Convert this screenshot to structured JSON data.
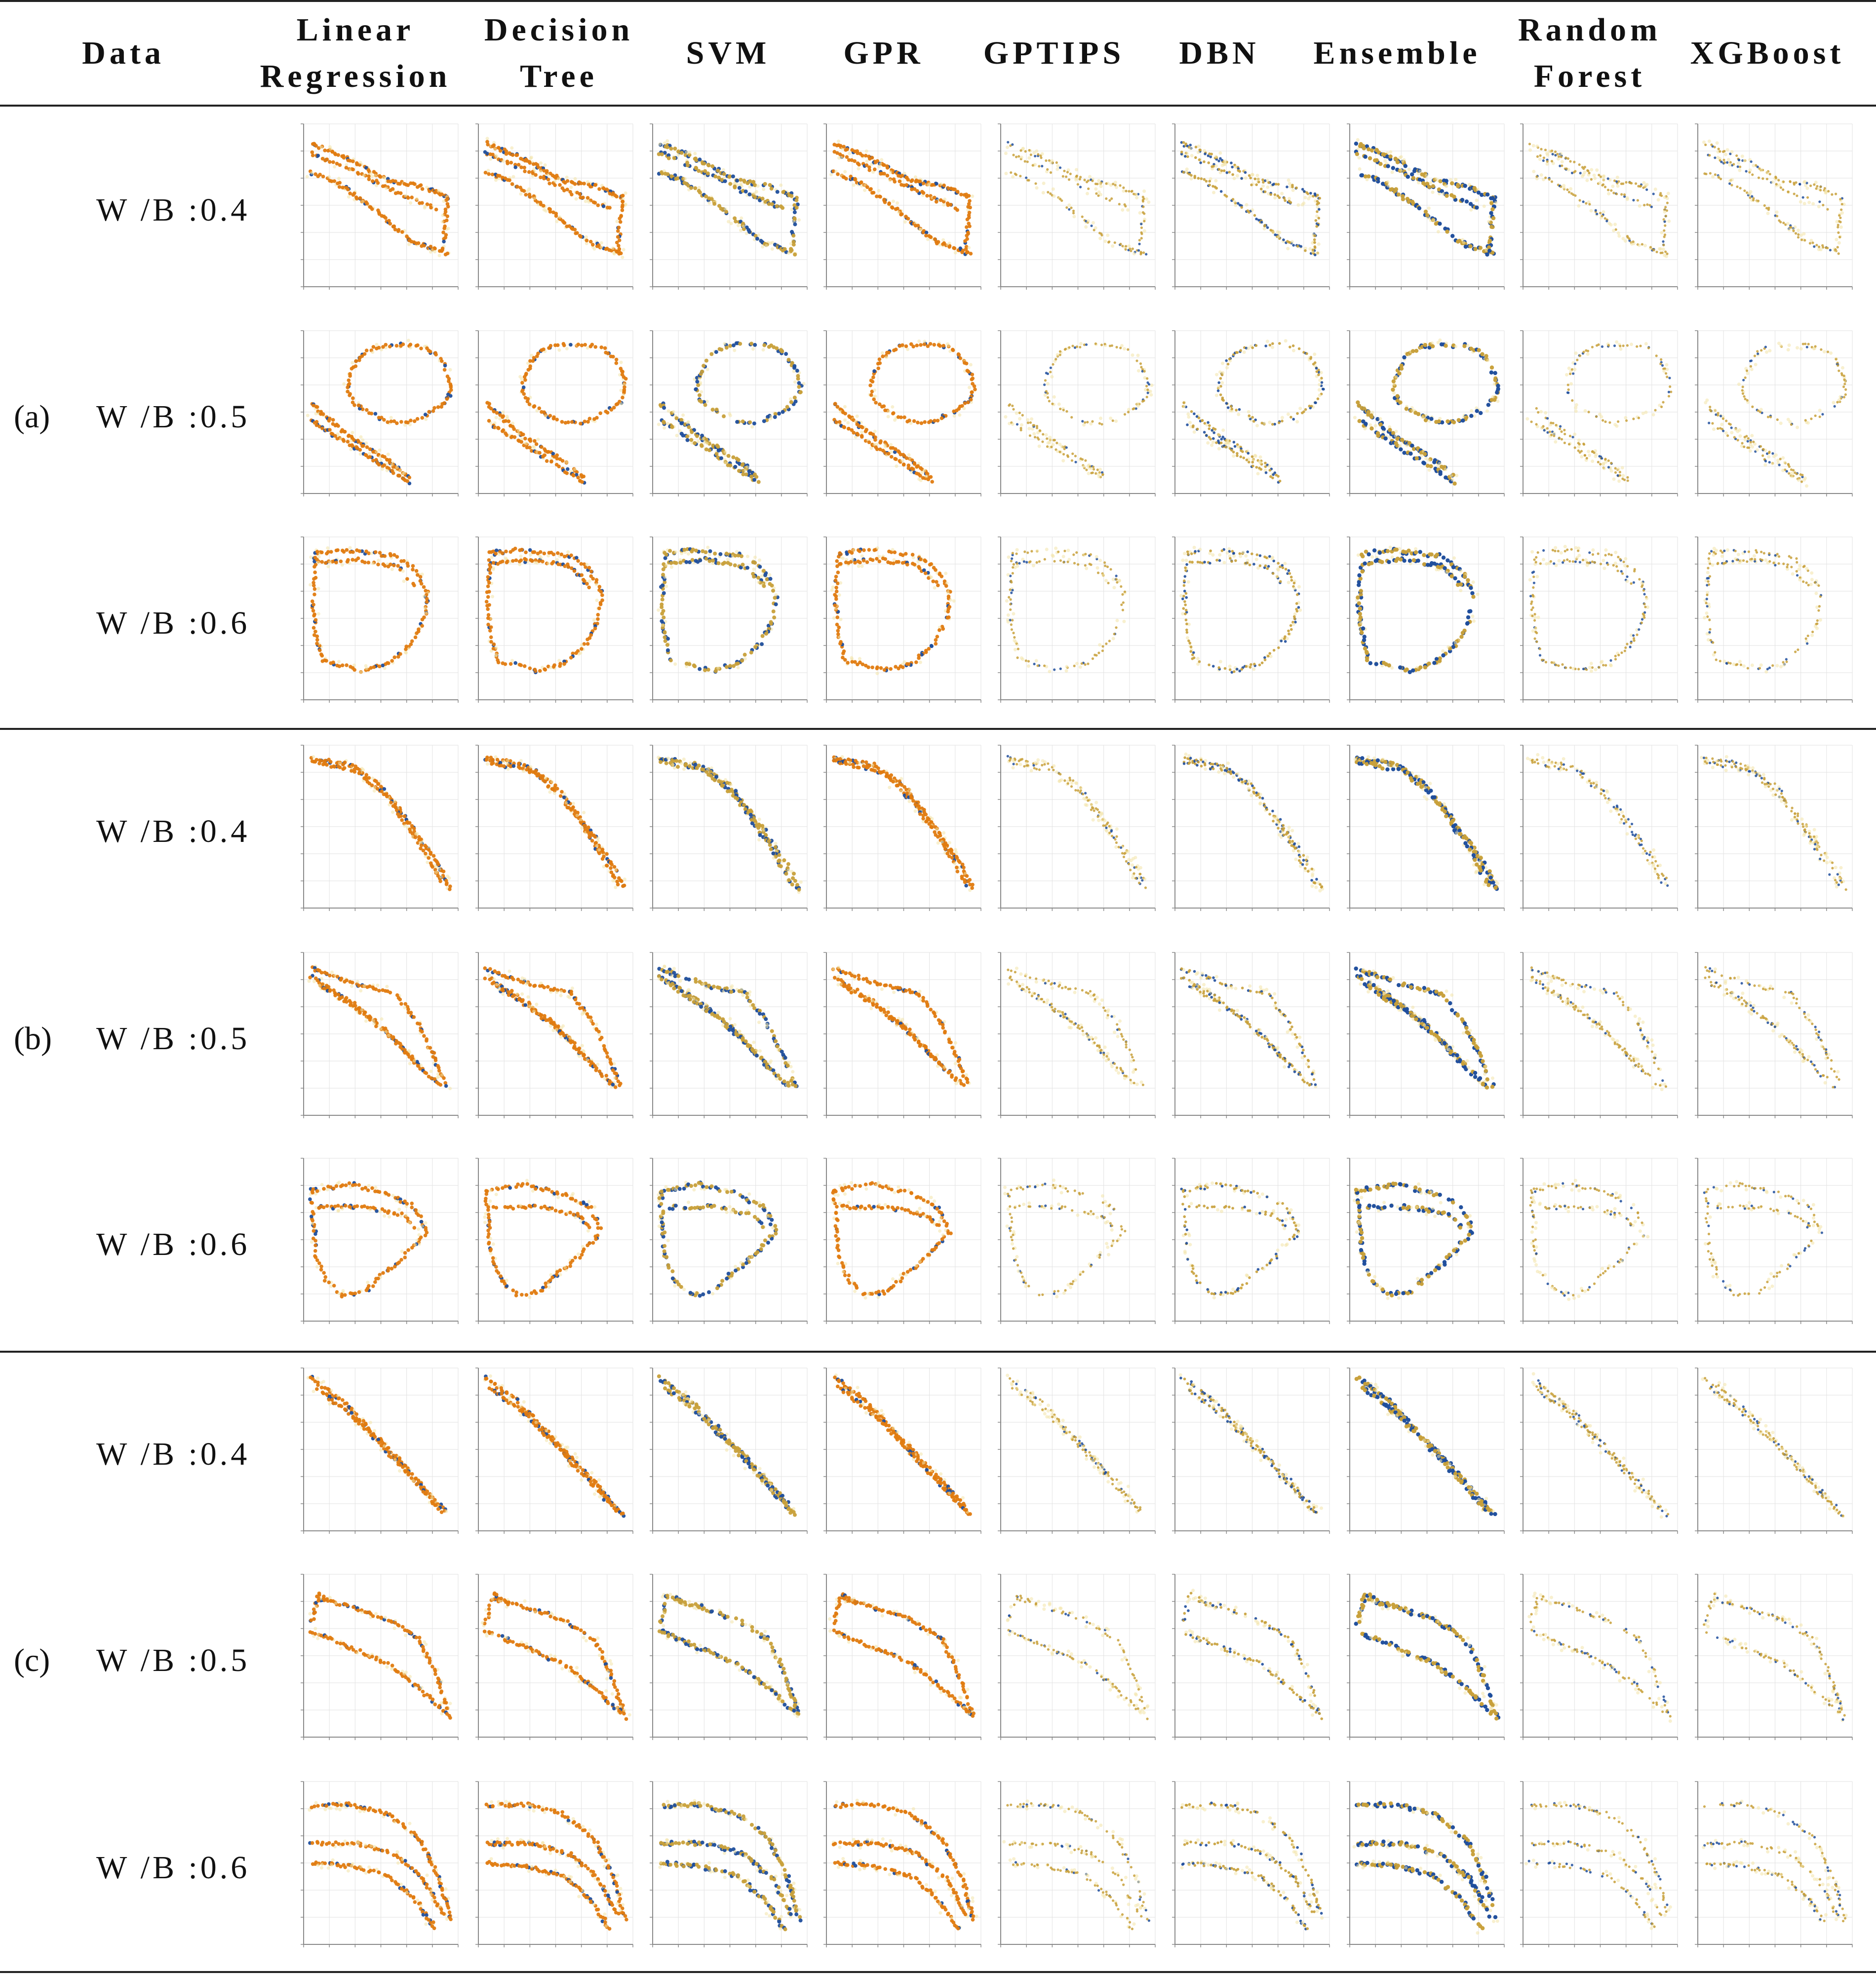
{
  "header": {
    "data_label": "Data",
    "methods": [
      [
        "Linear",
        "Regression"
      ],
      [
        "Decision",
        "Tree"
      ],
      [
        "SVM"
      ],
      [
        "GPR"
      ],
      [
        "GPTIPS"
      ],
      [
        "DBN"
      ],
      [
        "Ensemble"
      ],
      [
        "Random",
        "Forest"
      ],
      [
        "XGBoost"
      ]
    ]
  },
  "groups": [
    {
      "label": "(a)",
      "rows": [
        "W /B :0.4",
        "W /B :0.5",
        "W /B :0.6"
      ]
    },
    {
      "label": "(b)",
      "rows": [
        "W /B :0.4",
        "W /B :0.5",
        "W /B :0.6"
      ]
    },
    {
      "label": "(c)",
      "rows": [
        "W /B :0.4",
        "W /B :0.5",
        "W /B :0.6"
      ]
    }
  ],
  "colors": {
    "predicted": "#e07b10",
    "actual": "#1f4e9c",
    "mixed": "#c8a03a",
    "grid": "#e2e2e2",
    "axis": "#8a8a8a"
  },
  "chart_data": {
    "type": "scatter",
    "layout": "grid of 9 rows x 9 columns of small scatter plots",
    "shapes_by_row": [
      "a1",
      "a2",
      "a3",
      "b1",
      "b2",
      "b3",
      "c1",
      "c2",
      "c3"
    ],
    "shape_styles": {
      "a1": "two decreasing noisy bands joined into an irregular closed loop",
      "a2": "large loop at top-right with a descending tail to bottom-right",
      "a3": "closed rounded loop",
      "b1": "two close concave-down decreasing curves",
      "b2": "three diverging decreasing bands",
      "b3": "closed polygon-like loop",
      "c1": "two parallel decreasing diagonal bands",
      "c2": "noisy upper band and lower band decreasing to the right",
      "c3": "three nested curves bending down at the right"
    },
    "column_emphasis": {
      "Linear Regression": "orange-dominant",
      "Decision Tree": "orange-dominant",
      "SVM": "blue outline with orange",
      "GPR": "orange-dominant",
      "GPTIPS": "light mixed",
      "DBN": "light mixed with blue",
      "Ensemble": "strong blue and orange",
      "Random Forest": "light mixed",
      "XGBoost": "light mixed"
    }
  }
}
